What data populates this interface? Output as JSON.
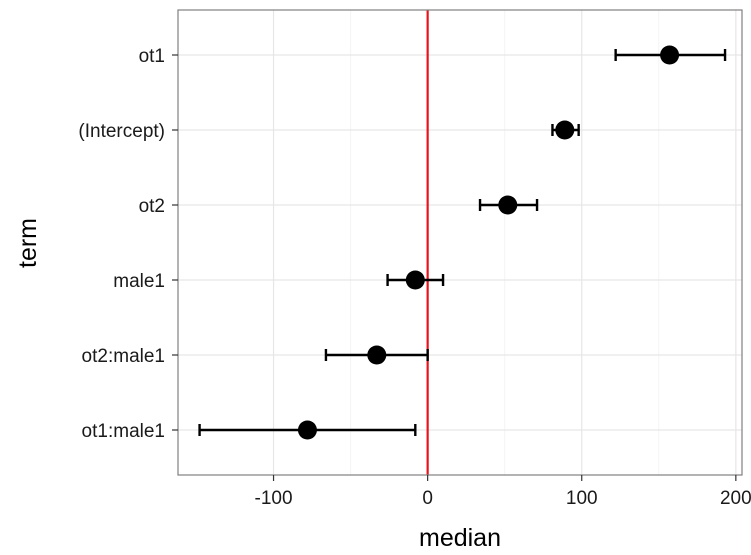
{
  "chart_data": {
    "type": "scatter",
    "xlabel": "median",
    "ylabel": "term",
    "xlim": [
      -162,
      204
    ],
    "x_ticks": [
      -100,
      0,
      100,
      200
    ],
    "x_tick_labels": [
      "-100",
      "0",
      "100",
      "200"
    ],
    "grid": true,
    "reference_line": {
      "x": 0,
      "color": "#e8141c"
    },
    "point_color": "#000000",
    "terms": [
      {
        "term": "ot1",
        "median": 157,
        "lower": 122,
        "upper": 193
      },
      {
        "term": "(Intercept)",
        "median": 89,
        "lower": 81,
        "upper": 98
      },
      {
        "term": "ot2",
        "median": 52,
        "lower": 34,
        "upper": 71
      },
      {
        "term": "male1",
        "median": -8,
        "lower": -26,
        "upper": 10
      },
      {
        "term": "ot2:male1",
        "median": -33,
        "lower": -66,
        "upper": 0
      },
      {
        "term": "ot1:male1",
        "median": -78,
        "lower": -148,
        "upper": -8
      }
    ]
  }
}
